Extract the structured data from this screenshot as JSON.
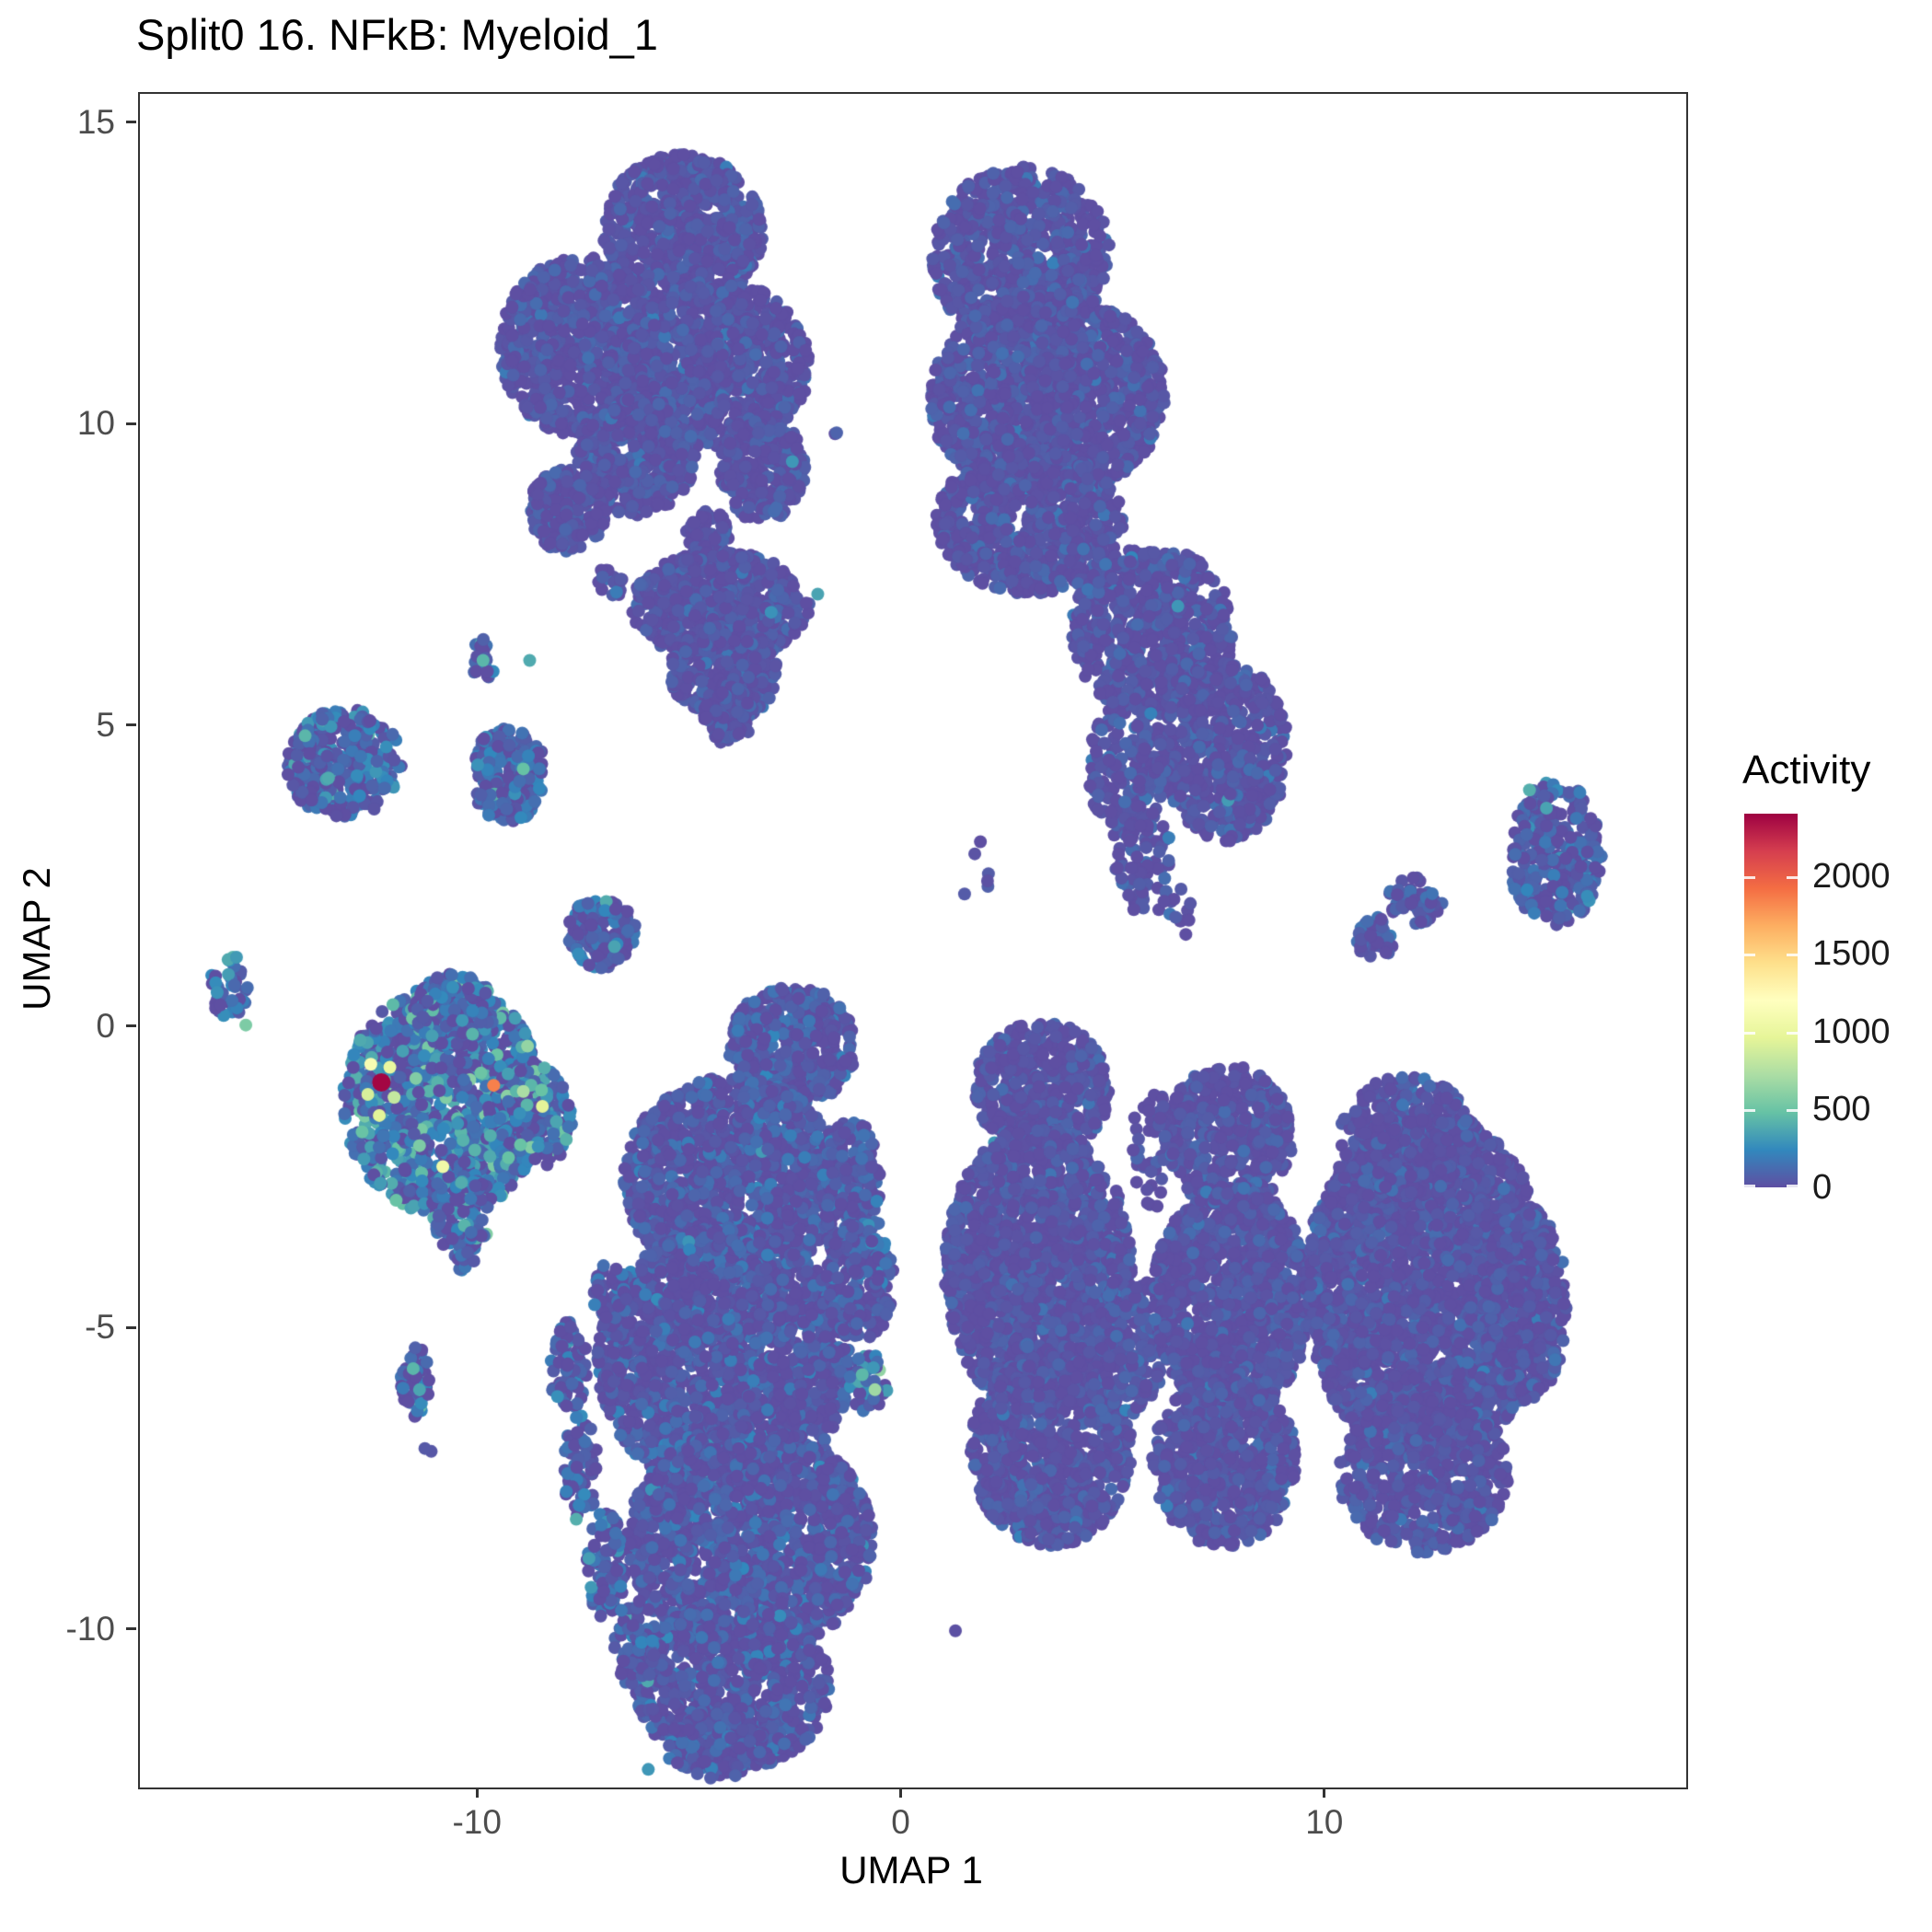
{
  "chart_data": {
    "type": "scatter",
    "title": "Split0 16. NFkB: Myeloid_1",
    "xlabel": "UMAP 1",
    "ylabel": "UMAP 2",
    "xlim": [
      -18.0,
      18.5
    ],
    "ylim": [
      -12.6,
      15.5
    ],
    "xticks": [
      -10,
      0,
      10
    ],
    "yticks": [
      -10,
      -5,
      0,
      5,
      10,
      15
    ],
    "grid": false,
    "point_radius_px": 7,
    "base_act": [
      20,
      60
    ],
    "legend": {
      "title": "Activity",
      "position": "right",
      "ticks": [
        0,
        500,
        1000,
        1500,
        2000
      ],
      "domain": [
        0,
        2400
      ],
      "palette": [
        "#5E4FA2",
        "#3288BD",
        "#66C2A5",
        "#ABDDA4",
        "#E6F598",
        "#FFFFBF",
        "#FEE08B",
        "#FDAE61",
        "#F46D43",
        "#D53E4F",
        "#9E0142"
      ]
    },
    "clusters": [
      {
        "name": "top-left",
        "blobs": [
          {
            "cx": -5.2,
            "cy": 13.2,
            "rx": 1.9,
            "ry": 1.3,
            "n": 700
          },
          {
            "cx": -7.6,
            "cy": 11.3,
            "rx": 1.9,
            "ry": 1.5,
            "n": 800
          },
          {
            "cx": -4.4,
            "cy": 11.0,
            "rx": 2.2,
            "ry": 1.4,
            "n": 900
          },
          {
            "cx": -6.3,
            "cy": 9.5,
            "rx": 1.4,
            "ry": 1.0,
            "n": 400
          },
          {
            "cx": -7.9,
            "cy": 8.6,
            "rx": 0.9,
            "ry": 0.7,
            "n": 200
          },
          {
            "cx": -3.3,
            "cy": 9.3,
            "rx": 1.0,
            "ry": 0.9,
            "n": 280
          },
          {
            "cx": -4.6,
            "cy": 8.2,
            "rx": 0.5,
            "ry": 0.4,
            "n": 80
          },
          {
            "cx": -4.3,
            "cy": 7.0,
            "rx": 2.1,
            "ry": 0.9,
            "n": 600
          },
          {
            "cx": -4.2,
            "cy": 5.9,
            "rx": 1.3,
            "ry": 0.8,
            "n": 300
          },
          {
            "cx": -4.1,
            "cy": 5.2,
            "rx": 0.6,
            "ry": 0.5,
            "n": 100
          },
          {
            "cx": -6.9,
            "cy": 7.4,
            "rx": 0.3,
            "ry": 0.3,
            "n": 18
          },
          {
            "cx": -1.6,
            "cy": 9.9,
            "rx": 0.08,
            "ry": 0.08,
            "n": 2
          }
        ]
      },
      {
        "name": "top-right",
        "blobs": [
          {
            "cx": 2.8,
            "cy": 12.8,
            "rx": 2.1,
            "ry": 1.5,
            "n": 800
          },
          {
            "cx": 3.4,
            "cy": 10.5,
            "rx": 2.8,
            "ry": 1.7,
            "n": 1400
          },
          {
            "cx": 3.0,
            "cy": 8.4,
            "rx": 2.2,
            "ry": 1.2,
            "n": 700
          },
          {
            "cx": 5.9,
            "cy": 6.6,
            "rx": 1.9,
            "ry": 1.4,
            "n": 700
          },
          {
            "cx": 7.6,
            "cy": 4.6,
            "rx": 1.5,
            "ry": 1.5,
            "n": 550
          },
          {
            "cx": 5.3,
            "cy": 4.3,
            "rx": 0.9,
            "ry": 1.2,
            "n": 200
          },
          {
            "cx": 5.7,
            "cy": 2.7,
            "rx": 0.7,
            "ry": 0.9,
            "n": 80
          },
          {
            "cx": 6.4,
            "cy": 1.9,
            "rx": 0.5,
            "ry": 0.5,
            "n": 12
          },
          {
            "cx": 1.7,
            "cy": 2.6,
            "rx": 0.4,
            "ry": 0.6,
            "n": 6
          }
        ]
      },
      {
        "name": "right-small",
        "blobs": [
          {
            "cx": 15.4,
            "cy": 2.9,
            "rx": 1.1,
            "ry": 1.2,
            "n": 280,
            "act": [
              60,
              110
            ]
          },
          {
            "cx": 11.2,
            "cy": 1.5,
            "rx": 0.55,
            "ry": 0.35,
            "n": 40,
            "act": [
              40,
              90
            ]
          },
          {
            "cx": 12.1,
            "cy": 2.1,
            "rx": 0.65,
            "ry": 0.4,
            "n": 50,
            "act": [
              40,
              90
            ]
          }
        ]
      },
      {
        "name": "left-small",
        "blobs": [
          {
            "cx": -13.2,
            "cy": 4.4,
            "rx": 1.4,
            "ry": 0.9,
            "n": 320,
            "act": [
              90,
              130
            ]
          },
          {
            "cx": -9.3,
            "cy": 4.2,
            "rx": 0.9,
            "ry": 0.8,
            "n": 220,
            "act": [
              90,
              130
            ]
          },
          {
            "cx": -9.9,
            "cy": 6.1,
            "rx": 0.3,
            "ry": 0.35,
            "n": 22,
            "act": [
              100,
              140
            ]
          },
          {
            "cx": -15.9,
            "cy": 0.7,
            "rx": 0.45,
            "ry": 0.55,
            "n": 45,
            "act": [
              100,
              140
            ]
          },
          {
            "cx": -7.1,
            "cy": 1.6,
            "rx": 0.8,
            "ry": 0.6,
            "n": 150,
            "act": [
              60,
              110
            ]
          }
        ]
      },
      {
        "name": "myeloid",
        "blobs": [
          {
            "cx": -10.8,
            "cy": -1.2,
            "rx": 2.4,
            "ry": 1.9,
            "n": 1100,
            "act": [
              140,
              180
            ]
          },
          {
            "cx": -10.6,
            "cy": 0.3,
            "rx": 1.0,
            "ry": 0.6,
            "n": 180,
            "act": [
              90,
              140
            ]
          },
          {
            "cx": -8.8,
            "cy": -1.5,
            "rx": 1.0,
            "ry": 0.9,
            "n": 220,
            "act": [
              140,
              180
            ]
          },
          {
            "cx": -10.4,
            "cy": -3.0,
            "rx": 0.7,
            "ry": 0.8,
            "n": 120,
            "act": [
              120,
              160
            ]
          },
          {
            "cx": -10.3,
            "cy": -3.9,
            "rx": 0.2,
            "ry": 0.25,
            "n": 8,
            "act": [
              100,
              140
            ]
          }
        ]
      },
      {
        "name": "bottom-center",
        "blobs": [
          {
            "cx": -2.6,
            "cy": -0.3,
            "rx": 1.5,
            "ry": 1.0,
            "n": 420,
            "act": [
              30,
              90
            ]
          },
          {
            "cx": -4.0,
            "cy": -2.5,
            "rx": 2.6,
            "ry": 1.7,
            "n": 1300,
            "act": [
              30,
              90
            ]
          },
          {
            "cx": -4.2,
            "cy": -5.5,
            "rx": 3.0,
            "ry": 2.2,
            "n": 1900,
            "act": [
              30,
              90
            ]
          },
          {
            "cx": -3.6,
            "cy": -8.5,
            "rx": 2.9,
            "ry": 1.9,
            "n": 1500,
            "act": [
              30,
              90
            ]
          },
          {
            "cx": -4.0,
            "cy": -10.9,
            "rx": 2.3,
            "ry": 1.4,
            "n": 800,
            "act": [
              30,
              90
            ]
          },
          {
            "cx": -4.4,
            "cy": -11.9,
            "rx": 1.2,
            "ry": 0.55,
            "n": 150,
            "act": [
              30,
              90
            ]
          },
          {
            "cx": -1.2,
            "cy": -2.8,
            "rx": 0.7,
            "ry": 1.3,
            "n": 200,
            "act": [
              30,
              90
            ]
          },
          {
            "cx": -1.0,
            "cy": -4.2,
            "rx": 0.8,
            "ry": 1.0,
            "n": 180,
            "act": [
              30,
              90
            ]
          },
          {
            "cx": -7.9,
            "cy": -5.6,
            "rx": 0.45,
            "ry": 0.75,
            "n": 70,
            "act": [
              60,
              110
            ]
          },
          {
            "cx": -7.6,
            "cy": -7.3,
            "rx": 0.4,
            "ry": 0.9,
            "n": 70,
            "act": [
              60,
              110
            ]
          },
          {
            "cx": -7.0,
            "cy": -8.9,
            "rx": 0.45,
            "ry": 0.9,
            "n": 80,
            "act": [
              60,
              110
            ]
          },
          {
            "cx": -6.3,
            "cy": -10.2,
            "rx": 0.5,
            "ry": 0.8,
            "n": 80,
            "act": [
              60,
              110
            ]
          },
          {
            "cx": -6.9,
            "cy": -4.4,
            "rx": 0.4,
            "ry": 0.5,
            "n": 40,
            "act": [
              30,
              90
            ]
          },
          {
            "cx": -0.8,
            "cy": -5.9,
            "rx": 0.45,
            "ry": 0.5,
            "n": 40,
            "act": [
              150,
              220
            ]
          }
        ]
      },
      {
        "name": "bottom-right",
        "blobs": [
          {
            "cx": 3.3,
            "cy": -1.0,
            "rx": 1.6,
            "ry": 1.1,
            "n": 500
          },
          {
            "cx": 3.2,
            "cy": -4.0,
            "rx": 2.2,
            "ry": 2.4,
            "n": 1600
          },
          {
            "cx": 3.5,
            "cy": -7.0,
            "rx": 1.9,
            "ry": 1.6,
            "n": 800
          },
          {
            "cx": 5.4,
            "cy": -5.2,
            "rx": 0.8,
            "ry": 1.2,
            "n": 200
          },
          {
            "cx": 7.7,
            "cy": -1.8,
            "rx": 1.5,
            "ry": 1.2,
            "n": 450
          },
          {
            "cx": 7.8,
            "cy": -4.5,
            "rx": 1.9,
            "ry": 1.9,
            "n": 1100
          },
          {
            "cx": 7.6,
            "cy": -7.2,
            "rx": 1.7,
            "ry": 1.4,
            "n": 650
          },
          {
            "cx": 5.9,
            "cy": -2.0,
            "rx": 0.5,
            "ry": 1.0,
            "n": 50
          },
          {
            "cx": 12.4,
            "cy": -4.3,
            "rx": 2.9,
            "ry": 2.9,
            "n": 2600
          },
          {
            "cx": 11.9,
            "cy": -1.8,
            "rx": 1.6,
            "ry": 1.0,
            "n": 400
          },
          {
            "cx": 12.3,
            "cy": -7.4,
            "rx": 2.0,
            "ry": 1.3,
            "n": 600
          },
          {
            "cx": 14.7,
            "cy": -4.6,
            "rx": 1.0,
            "ry": 1.6,
            "n": 280
          }
        ]
      },
      {
        "name": "left-bottom-small",
        "blobs": [
          {
            "cx": -11.5,
            "cy": -5.85,
            "rx": 0.35,
            "ry": 0.6,
            "n": 45,
            "act": [
              100,
              150
            ]
          },
          {
            "cx": -11.2,
            "cy": -7.0,
            "rx": 0.1,
            "ry": 0.1,
            "n": 2,
            "act": [
              80,
              100
            ]
          }
        ]
      }
    ],
    "accent_points": [
      [
        -12.3,
        -0.9,
        2380,
        10
      ],
      [
        -12.55,
        -0.6,
        1120
      ],
      [
        -12.1,
        -0.65,
        1000
      ],
      [
        -12.62,
        -1.1,
        900
      ],
      [
        -12.0,
        -1.15,
        820
      ],
      [
        -12.35,
        -1.45,
        950
      ],
      [
        -9.65,
        -0.95,
        1850
      ],
      [
        -8.95,
        -1.05,
        720
      ],
      [
        -8.5,
        -1.3,
        950
      ],
      [
        -10.85,
        -2.3,
        1060
      ],
      [
        -8.85,
        -0.3,
        640
      ],
      [
        -11.4,
        -1.95,
        560
      ],
      [
        -9.3,
        -2.15,
        480
      ],
      [
        -10.15,
        -0.1,
        420
      ],
      [
        -12.8,
        -0.2,
        380
      ],
      [
        -15.5,
        0.05,
        560
      ],
      [
        -14.1,
        4.85,
        430
      ],
      [
        -13.55,
        4.15,
        380
      ],
      [
        -8.95,
        4.3,
        480
      ],
      [
        -9.9,
        6.1,
        430
      ],
      [
        -8.8,
        6.1,
        380
      ],
      [
        -6.8,
        1.35,
        350
      ],
      [
        14.8,
        3.95,
        400
      ],
      [
        15.2,
        3.65,
        350
      ],
      [
        -11.55,
        -5.65,
        430
      ],
      [
        -11.4,
        -6.0,
        360
      ],
      [
        -7.7,
        -8.15,
        400
      ],
      [
        -7.4,
        -8.8,
        330
      ],
      [
        -0.65,
        -6.0,
        680
      ],
      [
        -0.95,
        -5.75,
        440
      ],
      [
        1.25,
        -10.0,
        10
      ],
      [
        -2.6,
        9.4,
        300
      ],
      [
        -2.0,
        7.2,
        350
      ],
      [
        6.5,
        7.0,
        300
      ],
      [
        -6.0,
        -12.3,
        300
      ],
      [
        -3.1,
        6.9,
        280
      ]
    ]
  }
}
